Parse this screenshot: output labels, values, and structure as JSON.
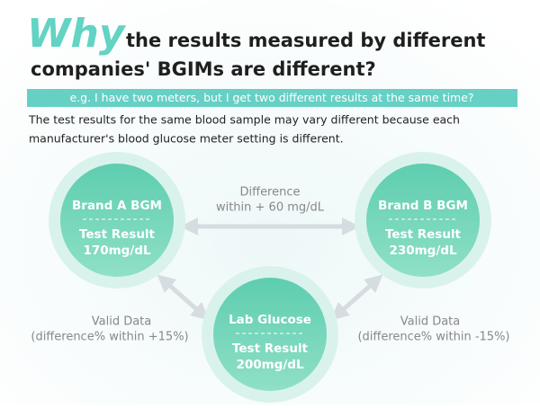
{
  "header": {
    "emphasis": "Why",
    "title_lines": [
      "the results measured by different",
      "companies' BGIMs are different?"
    ]
  },
  "example": "e.g. I have two meters, but I get two different results at the same time?",
  "description_lines": [
    "The test results for the same blood sample may vary different because each",
    "manufacturer's blood glucose meter setting is different."
  ],
  "nodes": [
    {
      "label": "Brand A BGM",
      "result_label": "Test Result",
      "result": "170mg/dL"
    },
    {
      "label": "Brand B BGM",
      "result_label": "Test Result",
      "result": "230mg/dL"
    },
    {
      "label": "Lab Glucose",
      "result_label": "Test Result",
      "result": "200mg/dL"
    }
  ],
  "edges": [
    {
      "lines": [
        "Difference",
        "within + 60 mg/dL"
      ]
    },
    {
      "lines": [
        "Valid Data",
        "(difference% within +15%)"
      ]
    },
    {
      "lines": [
        "Valid Data",
        "(difference% within -15%)"
      ]
    }
  ]
}
